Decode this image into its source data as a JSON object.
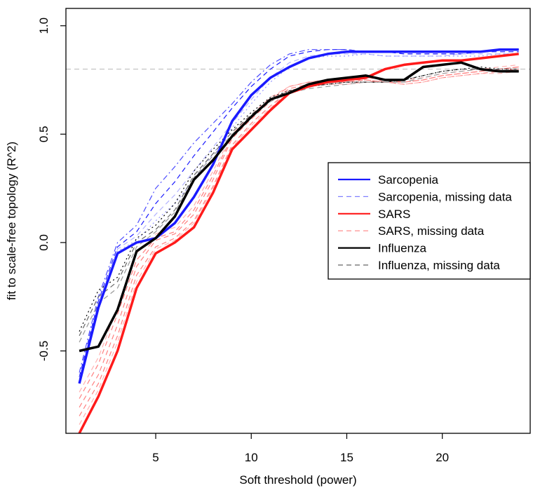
{
  "chart_data": {
    "type": "line",
    "title": "",
    "xlabel": "Soft threshold (power)",
    "ylabel": "fit to scale-free topology (R^2)",
    "xlim": [
      0.3,
      24.6
    ],
    "ylim": [
      -0.88,
      1.08
    ],
    "xticks": [
      5,
      10,
      15,
      20
    ],
    "yticks": [
      -0.5,
      0.0,
      0.5,
      1.0
    ],
    "xtick_labels": [
      "5",
      "10",
      "15",
      "20"
    ],
    "ytick_labels": [
      "-0.5",
      "0.0",
      "0.5",
      "1.0"
    ],
    "reference_line": {
      "y": 0.8,
      "color": "#bfbfbf",
      "style": "dashed"
    },
    "grid": false,
    "legend_position": "center-right",
    "x": [
      1,
      2,
      3,
      4,
      5,
      6,
      7,
      8,
      9,
      10,
      11,
      12,
      13,
      14,
      15,
      16,
      17,
      18,
      19,
      20,
      21,
      22,
      23,
      24
    ],
    "series": [
      {
        "name": "Sarcopenia",
        "color": "#1a1aff",
        "style": "solid",
        "width": 3.5,
        "values": [
          -0.65,
          -0.3,
          -0.05,
          0.0,
          0.02,
          0.09,
          0.21,
          0.36,
          0.56,
          0.68,
          0.76,
          0.81,
          0.85,
          0.87,
          0.88,
          0.88,
          0.88,
          0.88,
          0.88,
          0.88,
          0.88,
          0.88,
          0.89,
          0.89
        ]
      },
      {
        "name": "Sarcopenia, missing data",
        "color": "#1a1aff",
        "style": "dashed",
        "width": 1.2,
        "values": [
          -0.62,
          -0.27,
          -0.02,
          0.05,
          0.18,
          0.28,
          0.4,
          0.51,
          0.62,
          0.72,
          0.8,
          0.86,
          0.88,
          0.89,
          0.89,
          0.88,
          0.88,
          0.87,
          0.87,
          0.87,
          0.87,
          0.88,
          0.88,
          0.88
        ]
      },
      {
        "name": "",
        "color": "#4d4dff",
        "style": "dashdot",
        "width": 1.2,
        "values": [
          -0.6,
          -0.25,
          0.0,
          0.08,
          0.25,
          0.35,
          0.46,
          0.55,
          0.64,
          0.74,
          0.82,
          0.87,
          0.89,
          0.89,
          0.89,
          0.88,
          0.88,
          0.88,
          0.88,
          0.88,
          0.88,
          0.88,
          0.89,
          0.89
        ]
      },
      {
        "name": "",
        "color": "#b3b3ff",
        "style": "dashed",
        "width": 1.2,
        "values": [
          -0.63,
          -0.28,
          -0.03,
          0.03,
          0.13,
          0.22,
          0.33,
          0.44,
          0.55,
          0.66,
          0.76,
          0.83,
          0.86,
          0.87,
          0.87,
          0.87,
          0.86,
          0.86,
          0.86,
          0.86,
          0.87,
          0.87,
          0.87,
          0.87
        ]
      },
      {
        "name": "",
        "color": "#9999ff",
        "style": "dotted",
        "width": 1.2,
        "values": [
          -0.64,
          -0.29,
          -0.04,
          0.01,
          0.1,
          0.18,
          0.29,
          0.41,
          0.53,
          0.64,
          0.74,
          0.81,
          0.85,
          0.86,
          0.86,
          0.87,
          0.86,
          0.86,
          0.86,
          0.86,
          0.86,
          0.86,
          0.87,
          0.87
        ]
      },
      {
        "name": "SARS",
        "color": "#ff1a1a",
        "style": "solid",
        "width": 3.5,
        "values": [
          -0.88,
          -0.71,
          -0.5,
          -0.21,
          -0.05,
          0.0,
          0.07,
          0.23,
          0.43,
          0.52,
          0.61,
          0.69,
          0.72,
          0.74,
          0.75,
          0.76,
          0.8,
          0.82,
          0.83,
          0.84,
          0.84,
          0.85,
          0.86,
          0.87
        ]
      },
      {
        "name": "SARS, missing data",
        "color": "#ff8080",
        "style": "dashed",
        "width": 1.2,
        "values": [
          -0.8,
          -0.65,
          -0.43,
          -0.15,
          -0.02,
          0.02,
          0.1,
          0.26,
          0.45,
          0.55,
          0.63,
          0.7,
          0.72,
          0.73,
          0.74,
          0.74,
          0.75,
          0.74,
          0.75,
          0.77,
          0.78,
          0.79,
          0.8,
          0.81
        ]
      },
      {
        "name": "",
        "color": "#ff8080",
        "style": "dashed",
        "width": 1.2,
        "values": [
          -0.76,
          -0.61,
          -0.38,
          -0.11,
          0.01,
          0.04,
          0.13,
          0.29,
          0.48,
          0.57,
          0.65,
          0.71,
          0.73,
          0.74,
          0.74,
          0.75,
          0.74,
          0.73,
          0.74,
          0.76,
          0.77,
          0.78,
          0.79,
          0.8
        ]
      },
      {
        "name": "",
        "color": "#ff8080",
        "style": "dashed",
        "width": 1.2,
        "values": [
          -0.72,
          -0.56,
          -0.33,
          -0.08,
          0.02,
          0.05,
          0.15,
          0.31,
          0.49,
          0.58,
          0.66,
          0.72,
          0.74,
          0.75,
          0.75,
          0.75,
          0.74,
          0.74,
          0.75,
          0.77,
          0.78,
          0.79,
          0.8,
          0.81
        ]
      },
      {
        "name": "",
        "color": "#ffb3b3",
        "style": "dashed",
        "width": 1.2,
        "values": [
          -0.84,
          -0.68,
          -0.46,
          -0.18,
          -0.03,
          0.01,
          0.09,
          0.25,
          0.44,
          0.54,
          0.62,
          0.7,
          0.72,
          0.73,
          0.73,
          0.74,
          0.74,
          0.73,
          0.74,
          0.76,
          0.77,
          0.78,
          0.78,
          0.79
        ]
      },
      {
        "name": "",
        "color": "#ffb3b3",
        "style": "dashed",
        "width": 1.2,
        "values": [
          -0.69,
          -0.53,
          -0.3,
          -0.05,
          0.04,
          0.07,
          0.17,
          0.33,
          0.5,
          0.59,
          0.67,
          0.72,
          0.74,
          0.75,
          0.75,
          0.76,
          0.75,
          0.75,
          0.76,
          0.78,
          0.79,
          0.8,
          0.81,
          0.82
        ]
      },
      {
        "name": "Influenza",
        "color": "#000000",
        "style": "solid",
        "width": 3.5,
        "values": [
          -0.5,
          -0.48,
          -0.31,
          -0.04,
          0.02,
          0.12,
          0.29,
          0.38,
          0.49,
          0.58,
          0.66,
          0.69,
          0.73,
          0.75,
          0.76,
          0.77,
          0.75,
          0.75,
          0.81,
          0.82,
          0.83,
          0.8,
          0.79,
          0.79
        ]
      },
      {
        "name": "Influenza, missing data",
        "color": "#666666",
        "style": "dashed",
        "width": 1.2,
        "values": [
          -0.43,
          -0.25,
          -0.18,
          0.0,
          0.06,
          0.15,
          0.31,
          0.41,
          0.51,
          0.59,
          0.66,
          0.7,
          0.72,
          0.73,
          0.74,
          0.74,
          0.74,
          0.75,
          0.77,
          0.79,
          0.8,
          0.8,
          0.8,
          0.8
        ]
      },
      {
        "name": "",
        "color": "#000000",
        "style": "dotted",
        "width": 1.2,
        "values": [
          -0.41,
          -0.22,
          -0.16,
          0.02,
          0.08,
          0.18,
          0.33,
          0.43,
          0.52,
          0.6,
          0.67,
          0.7,
          0.72,
          0.73,
          0.74,
          0.74,
          0.74,
          0.75,
          0.77,
          0.79,
          0.8,
          0.81,
          0.8,
          0.8
        ]
      },
      {
        "name": "",
        "color": "#999999",
        "style": "dashed",
        "width": 1.2,
        "values": [
          -0.46,
          -0.28,
          -0.21,
          -0.02,
          0.05,
          0.14,
          0.3,
          0.4,
          0.5,
          0.58,
          0.65,
          0.69,
          0.71,
          0.72,
          0.73,
          0.74,
          0.74,
          0.74,
          0.76,
          0.78,
          0.79,
          0.8,
          0.79,
          0.79
        ]
      }
    ],
    "legend": [
      {
        "label": "Sarcopenia",
        "color": "#1a1aff",
        "style": "solid"
      },
      {
        "label": "Sarcopenia, missing data",
        "color": "#8080ff",
        "style": "dashed"
      },
      {
        "label": "SARS",
        "color": "#ff1a1a",
        "style": "solid"
      },
      {
        "label": "SARS, missing data",
        "color": "#ff9999",
        "style": "dashed"
      },
      {
        "label": "Influenza",
        "color": "#000000",
        "style": "solid"
      },
      {
        "label": "Influenza, missing data",
        "color": "#666666",
        "style": "dashed"
      }
    ]
  }
}
